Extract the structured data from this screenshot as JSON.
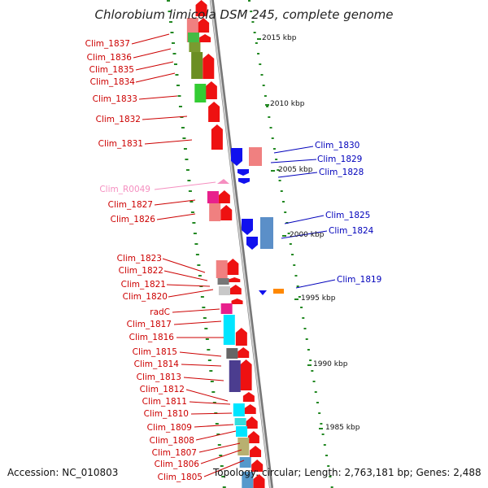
{
  "title": "Chlorobium limicola DSM 245, complete genome",
  "footer": {
    "accession": "Accession: NC_010803",
    "topology": "Topology: circular; Length: 2,763,181 bp; Genes: 2,488"
  },
  "scale_labels": [
    "2015 kbp",
    "2010 kbp",
    "2005 kbp",
    "2000 kbp",
    "1995 kbp",
    "1990 kbp",
    "1985 kbp"
  ],
  "left_labels": [
    "Clim_1837",
    "Clim_1836",
    "Clim_1835",
    "Clim_1834",
    "Clim_1833",
    "Clim_1832",
    "Clim_1831",
    "Clim_R0049",
    "Clim_1827",
    "Clim_1826",
    "Clim_1823",
    "Clim_1822",
    "Clim_1821",
    "Clim_1820",
    "radC",
    "Clim_1817",
    "Clim_1816",
    "Clim_1815",
    "Clim_1814",
    "Clim_1813",
    "Clim_1812",
    "Clim_1811",
    "Clim_1810",
    "Clim_1809",
    "Clim_1808",
    "Clim_1807",
    "Clim_1806",
    "Clim_1805"
  ],
  "right_labels": [
    "Clim_1830",
    "Clim_1829",
    "Clim_1828",
    "Clim_1825",
    "Clim_1824",
    "Clim_1819"
  ],
  "colors": {
    "gene_forward": "#ee1111",
    "gene_reverse": "#1111ee",
    "label_forward": "#cc0000",
    "label_reverse": "#0000bb",
    "rna": "#f58fc0",
    "tick": "#228822",
    "backbone": "#999999"
  }
}
